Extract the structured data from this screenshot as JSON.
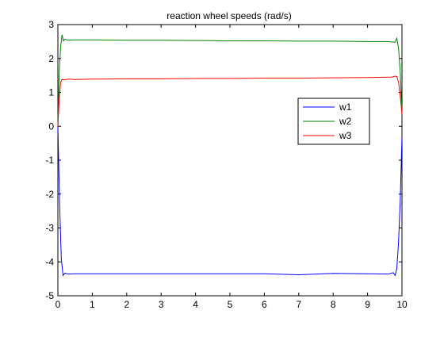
{
  "chart_data": {
    "type": "line",
    "title": "reaction wheel speeds (rad/s)",
    "xlabel": "",
    "ylabel": "",
    "xlim": [
      0,
      10
    ],
    "ylim": [
      -5,
      3
    ],
    "xticks": [
      0,
      1,
      2,
      3,
      4,
      5,
      6,
      7,
      8,
      9,
      10
    ],
    "yticks": [
      -5,
      -4,
      -3,
      -2,
      -1,
      0,
      1,
      2,
      3
    ],
    "grid": false,
    "legend_position": "right",
    "series": [
      {
        "name": "w1",
        "color": "#0000ff",
        "x": [
          0,
          0.05,
          0.1,
          0.15,
          0.2,
          0.3,
          0.5,
          1,
          2,
          3,
          4,
          5,
          6,
          7,
          8,
          9,
          9.6,
          9.75,
          9.8,
          9.85,
          9.9,
          9.95,
          10
        ],
        "y": [
          0,
          -2.3,
          -3.9,
          -4.4,
          -4.33,
          -4.36,
          -4.35,
          -4.35,
          -4.35,
          -4.35,
          -4.35,
          -4.35,
          -4.35,
          -4.38,
          -4.34,
          -4.35,
          -4.36,
          -4.32,
          -4.4,
          -4.2,
          -3.4,
          -2.2,
          -0.3
        ]
      },
      {
        "name": "w2",
        "color": "#008000",
        "x": [
          0,
          0.04,
          0.08,
          0.12,
          0.16,
          0.2,
          0.3,
          0.5,
          1,
          2,
          3,
          4,
          5,
          6,
          7,
          8,
          9,
          9.6,
          9.8,
          9.85,
          9.9,
          9.95,
          10
        ],
        "y": [
          0,
          1.6,
          2.35,
          2.7,
          2.52,
          2.57,
          2.54,
          2.55,
          2.55,
          2.54,
          2.54,
          2.53,
          2.52,
          2.52,
          2.51,
          2.51,
          2.5,
          2.5,
          2.48,
          2.6,
          2.3,
          1.6,
          0.4
        ]
      },
      {
        "name": "w3",
        "color": "#ff0000",
        "x": [
          0,
          0.04,
          0.08,
          0.12,
          0.2,
          0.3,
          0.5,
          1,
          2,
          3,
          4,
          5,
          6,
          7,
          8,
          9,
          9.7,
          9.8,
          9.85,
          9.9,
          9.95,
          10
        ],
        "y": [
          0,
          0.8,
          1.3,
          1.38,
          1.37,
          1.39,
          1.38,
          1.39,
          1.4,
          1.4,
          1.41,
          1.41,
          1.42,
          1.42,
          1.43,
          1.44,
          1.45,
          1.48,
          1.47,
          1.3,
          0.9,
          0.35
        ]
      }
    ]
  }
}
